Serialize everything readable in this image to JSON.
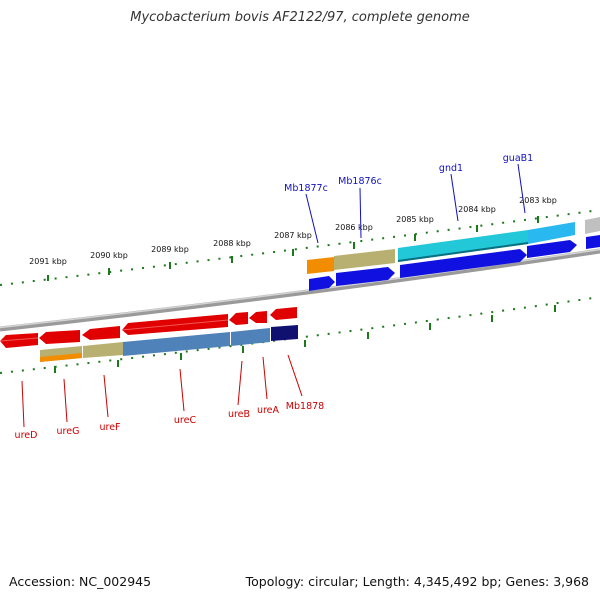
{
  "title": "Mycobacterium bovis AF2122/97, complete genome",
  "footer": {
    "accession": "Accession: NC_002945",
    "stats": "Topology: circular; Length: 4,345,492 bp; Genes: 3,968"
  },
  "top_ruler": {
    "ticks": [
      {
        "label": "2091 kbp"
      },
      {
        "label": "2090 kbp"
      },
      {
        "label": "2089 kbp"
      },
      {
        "label": "2088 kbp"
      },
      {
        "label": "2087 kbp"
      },
      {
        "label": "2086 kbp"
      },
      {
        "label": "2085 kbp"
      },
      {
        "label": "2084 kbp"
      },
      {
        "label": "2083 kbp"
      }
    ]
  },
  "gene_labels_top": [
    {
      "label": "Mb1877c",
      "color": "#1010c0"
    },
    {
      "label": "Mb1876c",
      "color": "#1010c0"
    },
    {
      "label": "gnd1",
      "color": "#1010c0"
    },
    {
      "label": "guaB1",
      "color": "#1010c0"
    }
  ],
  "gene_labels_bottom": [
    {
      "label": "ureD",
      "color": "#cc0000"
    },
    {
      "label": "ureG",
      "color": "#cc0000"
    },
    {
      "label": "ureF",
      "color": "#cc0000"
    },
    {
      "label": "ureC",
      "color": "#cc0000"
    },
    {
      "label": "ureB",
      "color": "#cc0000"
    },
    {
      "label": "ureA",
      "color": "#cc0000"
    },
    {
      "label": "Mb1878",
      "color": "#cc0000"
    }
  ],
  "colors": {
    "gene_red": "#e00000",
    "gene_blue": "#1010e0",
    "gene_orange": "#f28c00",
    "gene_olive": "#b8b070",
    "gene_steel": "#4f82b8",
    "gene_cyan": "#22c8d8",
    "gene_navy": "#101070",
    "tick_green": "#1a7a1a",
    "backbone": "#8a8a8a"
  }
}
